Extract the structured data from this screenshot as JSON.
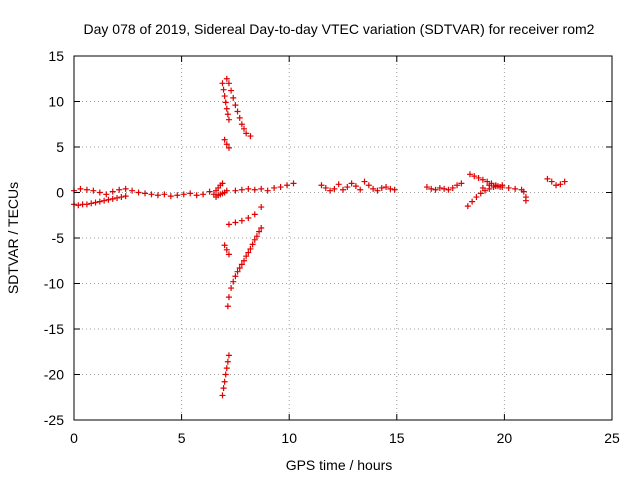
{
  "chart_data": {
    "type": "scatter",
    "title": "Day 078 of 2019, Sidereal Day-to-day VTEC variation (SDTVAR) for receiver rom2",
    "xlabel": "GPS time / hours",
    "ylabel": "SDTVAR / TECUs",
    "xlim": [
      0,
      25
    ],
    "ylim": [
      -25,
      15
    ],
    "xticks": [
      0,
      5,
      10,
      15,
      20,
      25
    ],
    "yticks": [
      -25,
      -20,
      -15,
      -10,
      -5,
      0,
      5,
      10,
      15
    ],
    "grid": true,
    "marker": "plus",
    "colors": {
      "series": "#e00000",
      "grid": "#a0a0a0"
    },
    "series": [
      {
        "x": [
          0.0,
          0.2,
          0.4,
          0.6,
          0.8,
          1.0,
          1.2,
          1.4,
          1.6,
          1.8,
          2.0,
          2.2,
          2.4
        ],
        "y": [
          -1.3,
          -1.4,
          -1.3,
          -1.3,
          -1.2,
          -1.1,
          -1.0,
          -0.9,
          -0.8,
          -0.7,
          -0.6,
          -0.5,
          -0.4
        ]
      },
      {
        "x": [
          0.0,
          0.3,
          0.6,
          0.9,
          1.2,
          1.5,
          1.8,
          2.1,
          2.4,
          2.7,
          3.0,
          3.3,
          3.6,
          3.9,
          4.2,
          4.5,
          4.8,
          5.1,
          5.4,
          5.7,
          6.0,
          6.3
        ],
        "y": [
          0.2,
          0.4,
          0.3,
          0.2,
          0.0,
          -0.2,
          0.1,
          0.3,
          0.4,
          0.2,
          0.0,
          -0.1,
          -0.2,
          -0.3,
          -0.2,
          -0.4,
          -0.3,
          -0.2,
          -0.1,
          -0.3,
          -0.2,
          0.1
        ]
      },
      {
        "x": [
          6.5,
          6.6,
          6.7,
          6.8,
          6.9
        ],
        "y": [
          -0.2,
          0.2,
          0.5,
          0.8,
          1.0
        ]
      },
      {
        "x": [
          6.6,
          6.7,
          6.8,
          6.9,
          7.0,
          7.1
        ],
        "y": [
          -0.5,
          -0.3,
          -0.2,
          -0.1,
          0.0,
          0.2
        ]
      },
      {
        "x": [
          6.9,
          6.95,
          7.0,
          7.05,
          7.1,
          7.15,
          7.2
        ],
        "y": [
          12.0,
          11.3,
          10.6,
          9.9,
          9.2,
          8.6,
          8.0
        ]
      },
      {
        "x": [
          7.1,
          7.2,
          7.3,
          7.4,
          7.5,
          7.6,
          7.7,
          7.8,
          7.9,
          8.0,
          8.2
        ],
        "y": [
          12.5,
          12.0,
          11.2,
          10.4,
          9.6,
          8.9,
          8.2,
          7.5,
          7.0,
          6.5,
          6.2
        ]
      },
      {
        "x": [
          7.0,
          7.1,
          7.2
        ],
        "y": [
          5.8,
          5.3,
          4.9
        ]
      },
      {
        "x": [
          7.0,
          7.1,
          7.2
        ],
        "y": [
          -5.8,
          -6.3,
          -6.8
        ]
      },
      {
        "x": [
          7.2,
          7.5,
          7.8,
          8.1,
          8.4,
          8.7
        ],
        "y": [
          -3.5,
          -3.3,
          -3.1,
          -2.8,
          -2.4,
          -1.6
        ]
      },
      {
        "x": [
          7.15,
          7.2,
          7.3,
          7.4,
          7.5,
          7.6,
          7.7,
          7.8,
          7.9,
          8.0,
          8.1,
          8.2,
          8.3,
          8.4,
          8.5,
          8.6,
          8.7
        ],
        "y": [
          -12.5,
          -11.5,
          -10.5,
          -9.8,
          -9.2,
          -8.7,
          -8.3,
          -7.9,
          -7.5,
          -7.0,
          -6.6,
          -6.2,
          -5.7,
          -5.2,
          -4.8,
          -4.3,
          -3.9
        ]
      },
      {
        "x": [
          6.9,
          6.95,
          7.0,
          7.05,
          7.1,
          7.15,
          7.2
        ],
        "y": [
          -22.3,
          -21.5,
          -20.8,
          -20.0,
          -19.3,
          -18.6,
          -17.9
        ]
      },
      {
        "x": [
          7.5,
          7.8,
          8.1,
          8.4,
          8.7,
          9.0,
          9.3,
          9.6,
          9.9,
          10.2
        ],
        "y": [
          0.2,
          0.3,
          0.4,
          0.3,
          0.4,
          0.2,
          0.5,
          0.6,
          0.8,
          1.0
        ]
      },
      {
        "x": [
          11.5,
          11.7,
          11.9,
          12.1,
          12.3,
          12.5,
          12.7,
          12.9,
          13.1,
          13.3,
          13.5,
          13.7,
          13.9,
          14.1,
          14.3,
          14.5,
          14.7,
          14.9
        ],
        "y": [
          0.8,
          0.5,
          0.2,
          0.4,
          0.9,
          0.3,
          0.6,
          1.0,
          0.7,
          0.3,
          1.2,
          0.8,
          0.4,
          0.2,
          0.5,
          0.6,
          0.4,
          0.3
        ]
      },
      {
        "x": [
          16.4,
          16.6,
          16.8,
          17.0,
          17.2,
          17.4,
          17.6,
          17.8,
          18.0
        ],
        "y": [
          0.6,
          0.4,
          0.3,
          0.5,
          0.4,
          0.3,
          0.5,
          0.8,
          1.0
        ]
      },
      {
        "x": [
          18.3,
          18.5,
          18.7,
          18.9,
          19.1,
          19.3,
          19.5,
          19.7,
          19.9
        ],
        "y": [
          -1.5,
          -1.0,
          -0.5,
          -0.1,
          0.2,
          0.4,
          0.6,
          0.7,
          0.8
        ]
      },
      {
        "x": [
          18.4,
          18.6,
          18.8,
          19.0,
          19.2,
          19.4,
          19.6,
          19.8
        ],
        "y": [
          2.0,
          1.8,
          1.6,
          1.4,
          1.2,
          1.0,
          0.8,
          0.6
        ]
      },
      {
        "x": [
          19.0,
          19.3,
          19.6,
          19.9,
          20.2,
          20.5,
          20.8
        ],
        "y": [
          0.5,
          0.8,
          0.7,
          0.6,
          0.5,
          0.4,
          0.3
        ]
      },
      {
        "x": [
          20.9,
          21.0,
          21.0
        ],
        "y": [
          0.1,
          -0.5,
          -0.9
        ]
      },
      {
        "x": [
          22.0,
          22.2,
          22.4,
          22.6,
          22.8
        ],
        "y": [
          1.5,
          1.2,
          0.8,
          0.9,
          1.2
        ]
      }
    ]
  }
}
